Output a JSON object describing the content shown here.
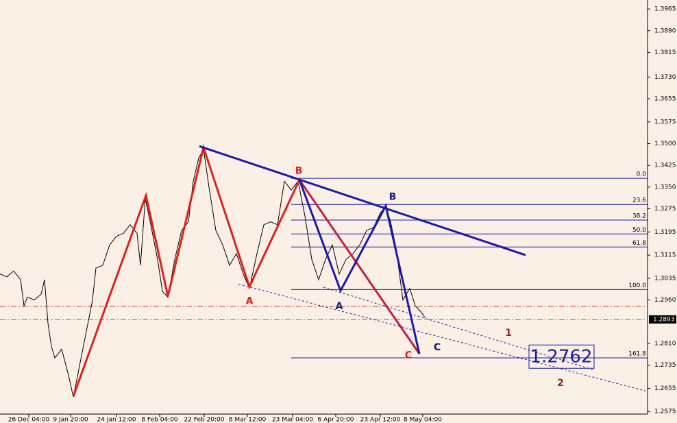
{
  "chart_data": {
    "type": "line",
    "x": [
      0,
      10,
      20,
      30,
      35,
      40,
      50,
      60,
      65,
      70,
      75,
      80,
      90,
      100,
      107,
      115,
      125,
      135,
      140,
      150,
      160,
      170,
      180,
      190,
      200,
      205,
      212,
      220,
      230,
      237,
      245,
      255,
      265,
      275,
      282,
      290,
      297,
      305,
      315,
      325,
      335,
      345,
      355,
      364,
      375,
      385,
      395,
      405,
      415,
      425,
      435,
      445,
      455,
      465,
      475,
      485,
      495,
      505,
      515,
      525,
      535,
      545,
      555,
      563,
      570,
      578,
      588,
      598,
      606,
      614,
      620
    ],
    "series": [
      {
        "color": "#000000",
        "values": [
          1.305,
          1.304,
          1.306,
          1.303,
          1.294,
          1.297,
          1.296,
          1.298,
          1.303,
          1.288,
          1.28,
          1.276,
          1.279,
          1.27,
          1.2625,
          1.272,
          1.284,
          1.296,
          1.307,
          1.308,
          1.315,
          1.318,
          1.319,
          1.322,
          1.319,
          1.308,
          1.331,
          1.322,
          1.31,
          1.299,
          1.297,
          1.31,
          1.32,
          1.323,
          1.337,
          1.345,
          1.348,
          1.335,
          1.32,
          1.315,
          1.308,
          1.312,
          1.305,
          1.3,
          1.312,
          1.322,
          1.323,
          1.322,
          1.337,
          1.334,
          1.337,
          1.325,
          1.31,
          1.303,
          1.31,
          1.315,
          1.305,
          1.31,
          1.312,
          1.315,
          1.32,
          1.321,
          1.326,
          1.3285,
          1.323,
          1.314,
          1.296,
          1.3,
          1.294,
          1.292,
          1.29
        ]
      }
    ],
    "xlim": [
      0,
      945
    ],
    "ylim": [
      1.2566,
      1.3996
    ],
    "yticks": [
      1.3965,
      {
        "value": 1.389,
        "label": "1.3890"
      },
      1.3815,
      {
        "value": 1.373,
        "label": "1.3730"
      },
      1.3655,
      1.3575,
      {
        "value": 1.35,
        "label": "1.3500"
      },
      1.3425,
      {
        "value": 1.335,
        "label": "1.3350"
      },
      1.3275,
      1.3195,
      1.3115,
      1.3035,
      {
        "value": 1.296,
        "label": "1.2960"
      },
      {
        "value": 1.281,
        "label": "1.2810"
      },
      1.2735,
      1.2655,
      1.2575
    ],
    "xticks": [
      {
        "value": 42,
        "label": "26 Dec 04:00"
      },
      {
        "value": 103,
        "label": "9 Jan 20:00"
      },
      {
        "value": 170,
        "label": "24 Jan 12:00"
      },
      {
        "value": 233,
        "label": "8 Feb 04:00"
      },
      {
        "value": 298,
        "label": "22 Feb 20:00"
      },
      {
        "value": 361,
        "label": "8 Mar 12:00"
      },
      {
        "value": 427,
        "label": "23 Mar 04:00"
      },
      {
        "value": 490,
        "label": "6 Apr 20:00"
      },
      {
        "value": 555,
        "label": "23 Apr 12:00"
      },
      {
        "value": 617,
        "label": "8 May 04:00"
      }
    ],
    "current_price": 1.2893,
    "target": 1.2762,
    "hlines": [
      {
        "value": 1.2937,
        "color": "#d23a2a",
        "dash": true
      },
      {
        "value": 1.2892,
        "color": "#2e9a3a",
        "dash": true
      }
    ],
    "fib_x": [
      425,
      945
    ],
    "fib_levels": [
      {
        "label": "0.0",
        "value": 1.338
      },
      {
        "label": "23.6",
        "value": 1.329
      },
      {
        "label": "38.2",
        "value": 1.3236
      },
      {
        "label": "50.0",
        "value": 1.3188
      },
      {
        "label": "61.8",
        "value": 1.3143
      },
      {
        "label": "100.0",
        "value": 1.2996
      },
      {
        "label": "161.8",
        "value": 1.276
      }
    ],
    "fib_color": "#1a1aa8",
    "overlays": [
      {
        "color": "#e0201a",
        "width": 3,
        "dash": false,
        "x": [
          107,
          213,
          245,
          297,
          364,
          437,
          612
        ],
        "values": [
          1.2627,
          1.3321,
          1.2973,
          1.3487,
          1.3006,
          1.3375,
          1.2774
        ]
      },
      {
        "color": "#c0204a",
        "width": 2.5,
        "dash": false,
        "x": [
          437,
          612
        ],
        "values": [
          1.3375,
          1.2774
        ]
      },
      {
        "color": "#1a1aa8",
        "width": 3,
        "dash": false,
        "x": [
          437,
          497,
          563,
          612
        ],
        "values": [
          1.3375,
          1.2992,
          1.3285,
          1.2774
        ]
      },
      {
        "color": "#1a1aa8",
        "width": 3,
        "dash": false,
        "x": [
          291,
          767
        ],
        "values": [
          1.3491,
          1.3115
        ]
      },
      {
        "color": "#1a1aa8",
        "width": 1,
        "dash": true,
        "x": [
          348,
          942
        ],
        "values": [
          1.3015,
          1.2646
        ]
      },
      {
        "color": "#1a1aa8",
        "width": 1,
        "dash": true,
        "x": [
          472,
          866
        ],
        "values": [
          1.3004,
          1.2719
        ]
      }
    ],
    "annotations": [
      {
        "text": "B",
        "x": 436,
        "y": 1.3405,
        "color": "#e0201a"
      },
      {
        "text": "A",
        "x": 364,
        "y": 1.2955,
        "color": "#e0201a"
      },
      {
        "text": "C",
        "x": 596,
        "y": 1.2768,
        "color": "#e0201a"
      },
      {
        "text": "A",
        "x": 495,
        "y": 1.2938,
        "color": "#1a1a7a"
      },
      {
        "text": "B",
        "x": 573,
        "y": 1.3315,
        "color": "#1a1a7a"
      },
      {
        "text": "C",
        "x": 638,
        "y": 1.2796,
        "color": "#1a1a7a"
      },
      {
        "text": "1",
        "x": 742,
        "y": 1.2845,
        "color": "#a02020"
      },
      {
        "text": "2",
        "x": 818,
        "y": 1.2672,
        "color": "#a02020"
      }
    ]
  }
}
